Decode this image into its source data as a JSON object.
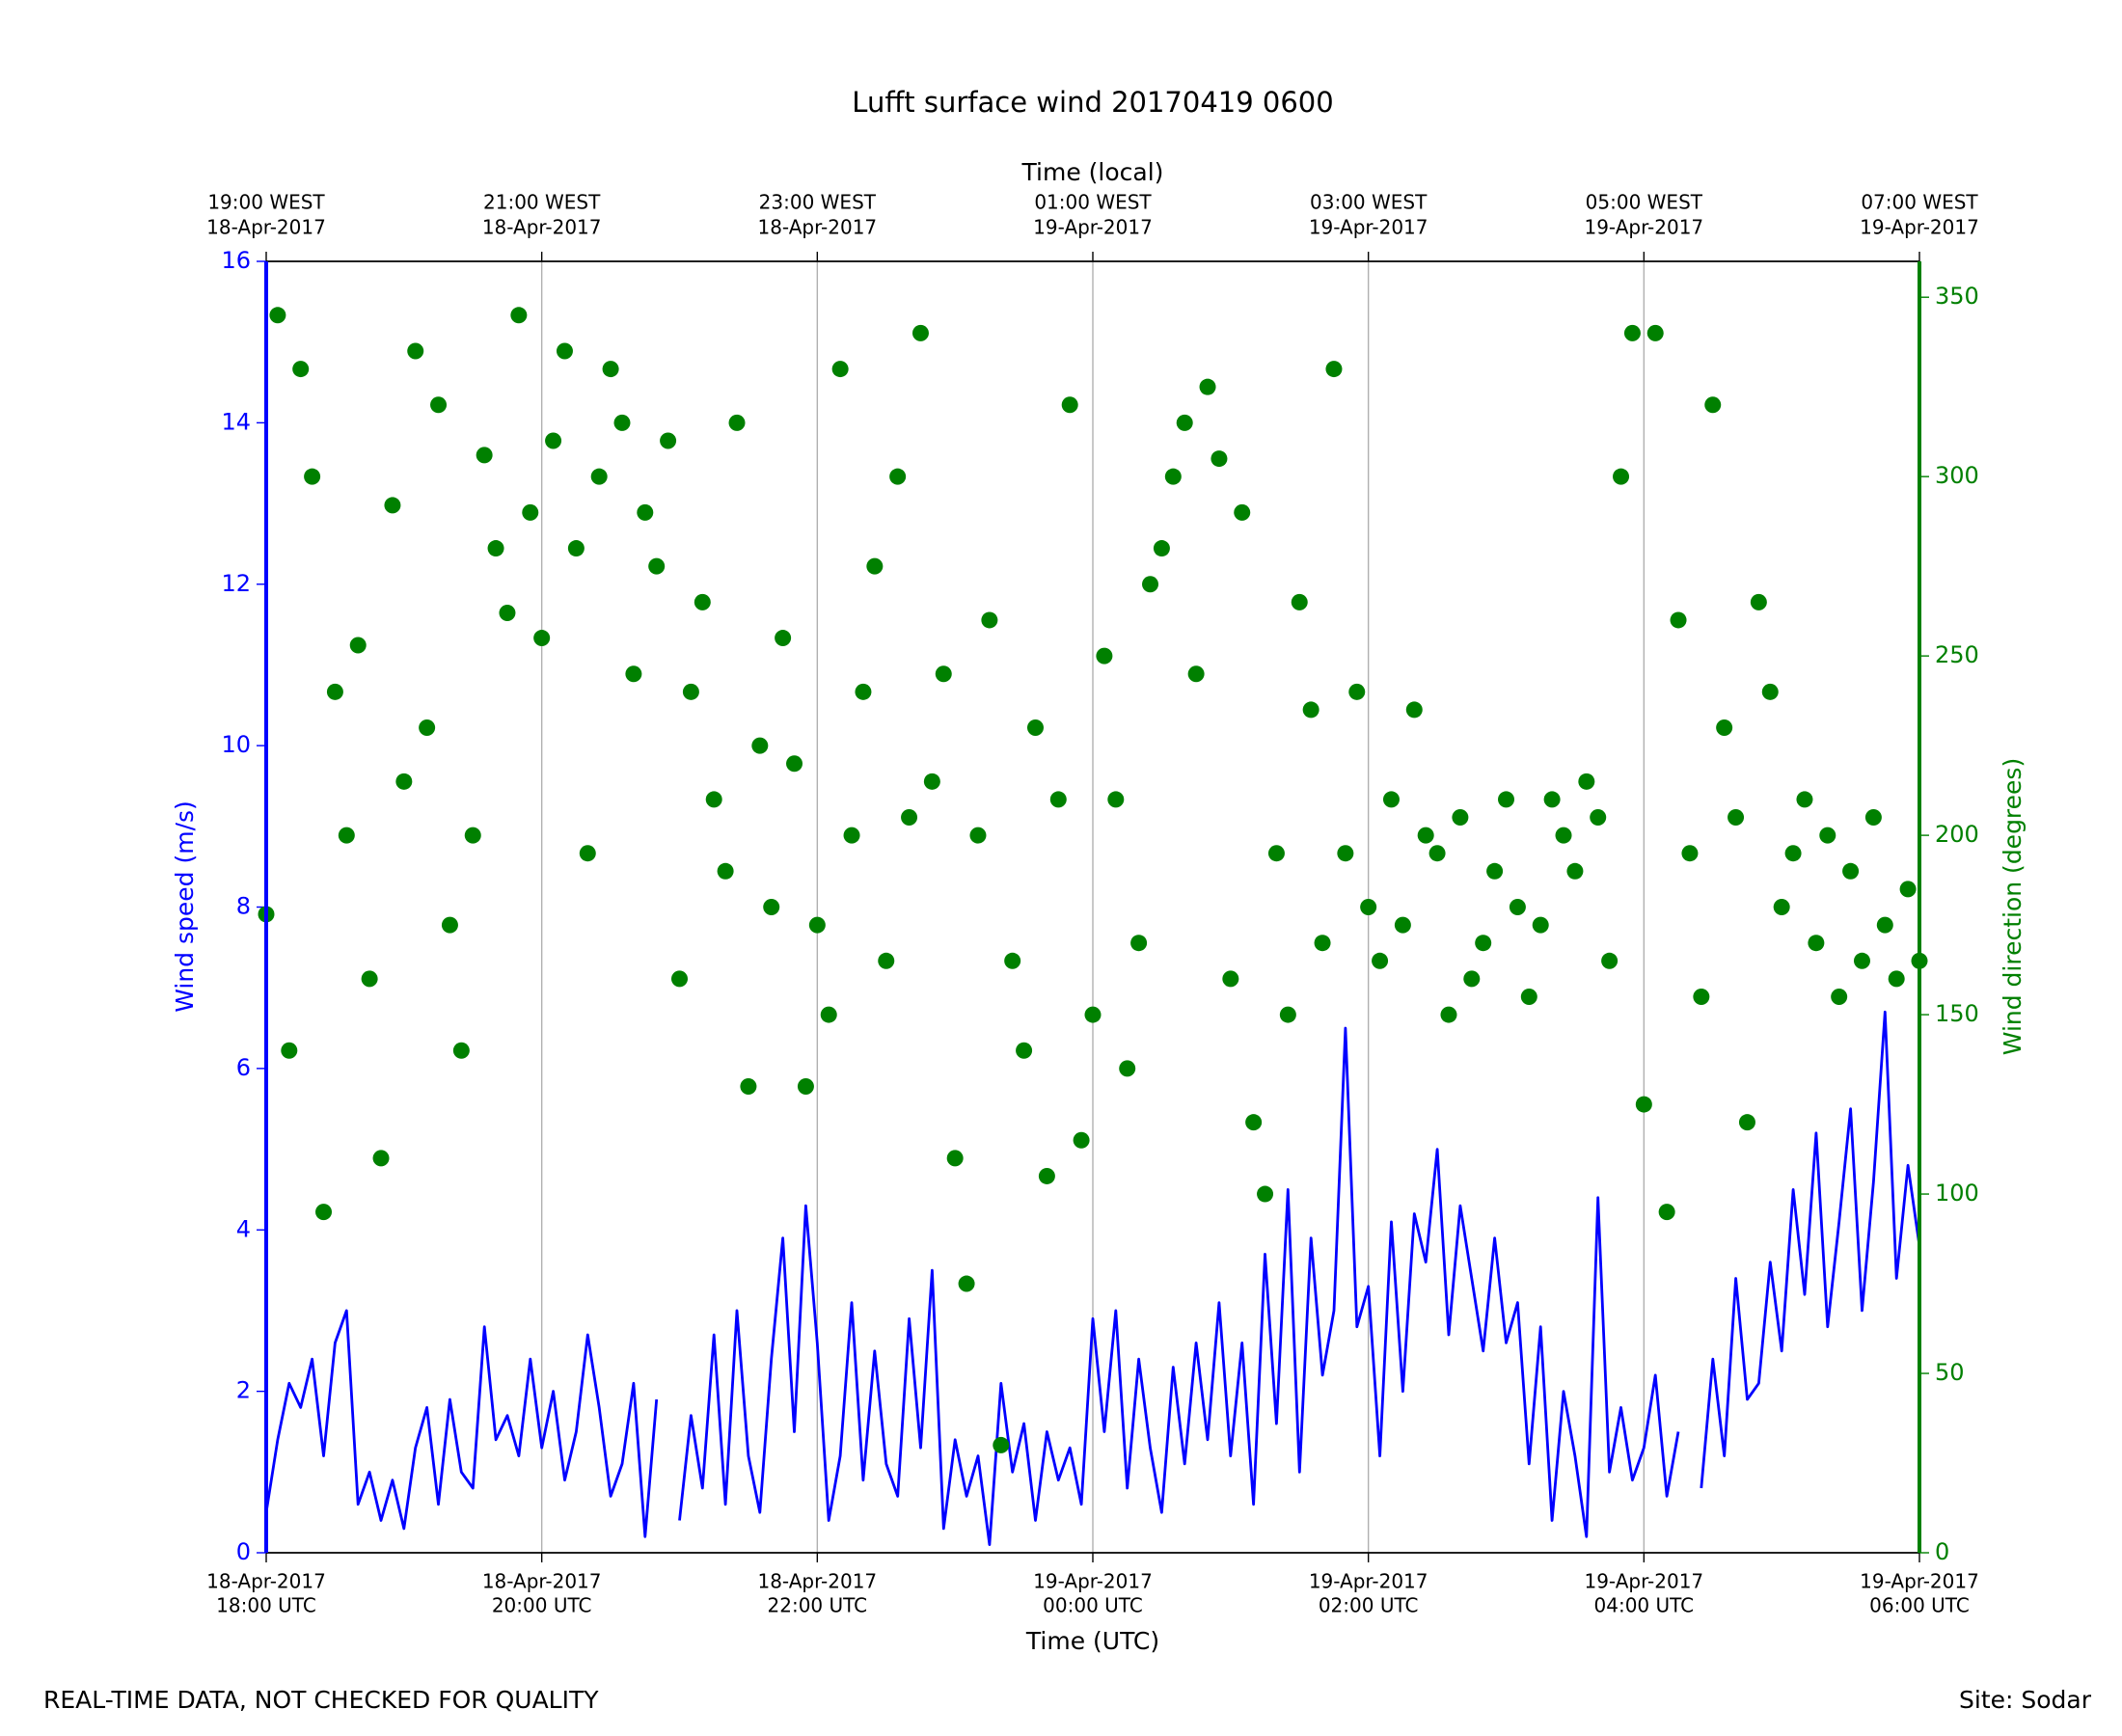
{
  "chart_data": {
    "type": "line",
    "title": "Lufft surface wind 20170419 0600",
    "xlabel": "Time (UTC)",
    "x2label": "Time (local)",
    "ylabel": "Wind speed (m/s)",
    "y2label": "Wind direction (degrees)",
    "footer_left": "REAL-TIME DATA, NOT CHECKED FOR QUALITY",
    "footer_right": "Site: Sodar",
    "grid": true,
    "xlim": [
      "2017-04-18 18:00",
      "2017-04-19 06:00"
    ],
    "xticks": [
      {
        "value": "2017-04-18 18:00",
        "label": [
          "18-Apr-2017",
          "18:00 UTC"
        ]
      },
      {
        "value": "2017-04-18 20:00",
        "label": [
          "18-Apr-2017",
          "20:00 UTC"
        ]
      },
      {
        "value": "2017-04-18 22:00",
        "label": [
          "18-Apr-2017",
          "22:00 UTC"
        ]
      },
      {
        "value": "2017-04-19 00:00",
        "label": [
          "19-Apr-2017",
          "00:00 UTC"
        ]
      },
      {
        "value": "2017-04-19 02:00",
        "label": [
          "19-Apr-2017",
          "02:00 UTC"
        ]
      },
      {
        "value": "2017-04-19 04:00",
        "label": [
          "19-Apr-2017",
          "04:00 UTC"
        ]
      },
      {
        "value": "2017-04-19 06:00",
        "label": [
          "19-Apr-2017",
          "06:00 UTC"
        ]
      }
    ],
    "x2ticks": [
      {
        "value": "2017-04-18 18:00",
        "label": [
          "19:00 WEST",
          "18-Apr-2017"
        ]
      },
      {
        "value": "2017-04-18 20:00",
        "label": [
          "21:00 WEST",
          "18-Apr-2017"
        ]
      },
      {
        "value": "2017-04-18 22:00",
        "label": [
          "23:00 WEST",
          "18-Apr-2017"
        ]
      },
      {
        "value": "2017-04-19 00:00",
        "label": [
          "01:00 WEST",
          "19-Apr-2017"
        ]
      },
      {
        "value": "2017-04-19 02:00",
        "label": [
          "03:00 WEST",
          "19-Apr-2017"
        ]
      },
      {
        "value": "2017-04-19 04:00",
        "label": [
          "05:00 WEST",
          "19-Apr-2017"
        ]
      },
      {
        "value": "2017-04-19 06:00",
        "label": [
          "07:00 WEST",
          "19-Apr-2017"
        ]
      }
    ],
    "ylim": [
      0,
      16
    ],
    "yticks": [
      0,
      2,
      4,
      6,
      8,
      10,
      12,
      14,
      16
    ],
    "y2lim": [
      0,
      360
    ],
    "y2ticks": [
      0,
      50,
      100,
      150,
      200,
      250,
      300,
      350
    ],
    "x": [
      "2017-04-18 18:00",
      "2017-04-18 18:05",
      "2017-04-18 18:10",
      "2017-04-18 18:15",
      "2017-04-18 18:20",
      "2017-04-18 18:25",
      "2017-04-18 18:30",
      "2017-04-18 18:35",
      "2017-04-18 18:40",
      "2017-04-18 18:45",
      "2017-04-18 18:50",
      "2017-04-18 18:55",
      "2017-04-18 19:00",
      "2017-04-18 19:05",
      "2017-04-18 19:10",
      "2017-04-18 19:15",
      "2017-04-18 19:20",
      "2017-04-18 19:25",
      "2017-04-18 19:30",
      "2017-04-18 19:35",
      "2017-04-18 19:40",
      "2017-04-18 19:45",
      "2017-04-18 19:50",
      "2017-04-18 19:55",
      "2017-04-18 20:00",
      "2017-04-18 20:05",
      "2017-04-18 20:10",
      "2017-04-18 20:15",
      "2017-04-18 20:20",
      "2017-04-18 20:25",
      "2017-04-18 20:30",
      "2017-04-18 20:35",
      "2017-04-18 20:40",
      "2017-04-18 20:45",
      "2017-04-18 20:50",
      "2017-04-18 20:55",
      "2017-04-18 21:00",
      "2017-04-18 21:05",
      "2017-04-18 21:10",
      "2017-04-18 21:15",
      "2017-04-18 21:20",
      "2017-04-18 21:25",
      "2017-04-18 21:30",
      "2017-04-18 21:35",
      "2017-04-18 21:40",
      "2017-04-18 21:45",
      "2017-04-18 21:50",
      "2017-04-18 21:55",
      "2017-04-18 22:00",
      "2017-04-18 22:05",
      "2017-04-18 22:10",
      "2017-04-18 22:15",
      "2017-04-18 22:20",
      "2017-04-18 22:25",
      "2017-04-18 22:30",
      "2017-04-18 22:35",
      "2017-04-18 22:40",
      "2017-04-18 22:45",
      "2017-04-18 22:50",
      "2017-04-18 22:55",
      "2017-04-18 23:00",
      "2017-04-18 23:05",
      "2017-04-18 23:10",
      "2017-04-18 23:15",
      "2017-04-18 23:20",
      "2017-04-18 23:25",
      "2017-04-18 23:30",
      "2017-04-18 23:35",
      "2017-04-18 23:40",
      "2017-04-18 23:45",
      "2017-04-18 23:50",
      "2017-04-18 23:55",
      "2017-04-19 00:00",
      "2017-04-19 00:05",
      "2017-04-19 00:10",
      "2017-04-19 00:15",
      "2017-04-19 00:20",
      "2017-04-19 00:25",
      "2017-04-19 00:30",
      "2017-04-19 00:35",
      "2017-04-19 00:40",
      "2017-04-19 00:45",
      "2017-04-19 00:50",
      "2017-04-19 00:55",
      "2017-04-19 01:00",
      "2017-04-19 01:05",
      "2017-04-19 01:10",
      "2017-04-19 01:15",
      "2017-04-19 01:20",
      "2017-04-19 01:25",
      "2017-04-19 01:30",
      "2017-04-19 01:35",
      "2017-04-19 01:40",
      "2017-04-19 01:45",
      "2017-04-19 01:50",
      "2017-04-19 01:55",
      "2017-04-19 02:00",
      "2017-04-19 02:05",
      "2017-04-19 02:10",
      "2017-04-19 02:15",
      "2017-04-19 02:20",
      "2017-04-19 02:25",
      "2017-04-19 02:30",
      "2017-04-19 02:35",
      "2017-04-19 02:40",
      "2017-04-19 02:45",
      "2017-04-19 02:50",
      "2017-04-19 02:55",
      "2017-04-19 03:00",
      "2017-04-19 03:05",
      "2017-04-19 03:10",
      "2017-04-19 03:15",
      "2017-04-19 03:20",
      "2017-04-19 03:25",
      "2017-04-19 03:30",
      "2017-04-19 03:35",
      "2017-04-19 03:40",
      "2017-04-19 03:45",
      "2017-04-19 03:50",
      "2017-04-19 03:55",
      "2017-04-19 04:00",
      "2017-04-19 04:05",
      "2017-04-19 04:10",
      "2017-04-19 04:15",
      "2017-04-19 04:20",
      "2017-04-19 04:25",
      "2017-04-19 04:30",
      "2017-04-19 04:35",
      "2017-04-19 04:40",
      "2017-04-19 04:45",
      "2017-04-19 04:50",
      "2017-04-19 04:55",
      "2017-04-19 05:00",
      "2017-04-19 05:05",
      "2017-04-19 05:10",
      "2017-04-19 05:15",
      "2017-04-19 05:20",
      "2017-04-19 05:25",
      "2017-04-19 05:30",
      "2017-04-19 05:35",
      "2017-04-19 05:40",
      "2017-04-19 05:45",
      "2017-04-19 05:50",
      "2017-04-19 05:55",
      "2017-04-19 06:00"
    ],
    "series": [
      {
        "type": "line",
        "axis": "y",
        "color": "#0000ff",
        "values": [
          0.5,
          1.4,
          2.1,
          1.8,
          2.4,
          1.2,
          2.6,
          3.0,
          0.6,
          1.0,
          0.4,
          0.9,
          0.3,
          1.3,
          1.8,
          0.6,
          1.9,
          1.0,
          0.8,
          2.8,
          1.4,
          1.7,
          1.2,
          2.4,
          1.3,
          2.0,
          0.9,
          1.5,
          2.7,
          1.8,
          0.7,
          1.1,
          2.1,
          0.2,
          1.9,
          null,
          0.4,
          1.7,
          0.8,
          2.7,
          0.6,
          3.0,
          1.2,
          0.5,
          2.4,
          3.9,
          1.5,
          4.3,
          2.6,
          0.4,
          1.2,
          3.1,
          0.9,
          2.5,
          1.1,
          0.7,
          2.9,
          1.3,
          3.5,
          0.3,
          1.4,
          0.7,
          1.2,
          0.1,
          2.1,
          1.0,
          1.6,
          0.4,
          1.5,
          0.9,
          1.3,
          0.6,
          2.9,
          1.5,
          3.0,
          0.8,
          2.4,
          1.3,
          0.5,
          2.3,
          1.1,
          2.6,
          1.4,
          3.1,
          1.2,
          2.6,
          0.6,
          3.7,
          1.6,
          4.5,
          1.0,
          3.9,
          2.2,
          3.0,
          6.5,
          2.8,
          3.3,
          1.2,
          4.1,
          2.0,
          4.2,
          3.6,
          5.0,
          2.7,
          4.3,
          3.4,
          2.5,
          3.9,
          2.6,
          3.1,
          1.1,
          2.8,
          0.4,
          2.0,
          1.2,
          0.2,
          4.4,
          1.0,
          1.8,
          0.9,
          1.3,
          2.2,
          0.7,
          1.5,
          null,
          0.8,
          2.4,
          1.2,
          3.4,
          1.9,
          2.1,
          3.6,
          2.5,
          4.5,
          3.2,
          5.2,
          2.8,
          4.1,
          5.5,
          3.0,
          4.6,
          6.7,
          3.4,
          4.8,
          3.8
        ]
      },
      {
        "type": "scatter",
        "axis": "y2",
        "color": "#008000",
        "values": [
          178,
          345,
          140,
          330,
          300,
          95,
          240,
          200,
          253,
          160,
          110,
          292,
          215,
          335,
          230,
          320,
          175,
          140,
          200,
          306,
          280,
          262,
          345,
          290,
          255,
          310,
          335,
          280,
          195,
          300,
          330,
          315,
          245,
          290,
          275,
          310,
          160,
          240,
          265,
          210,
          190,
          315,
          130,
          225,
          180,
          255,
          220,
          130,
          175,
          150,
          330,
          200,
          240,
          275,
          165,
          300,
          205,
          340,
          215,
          245,
          110,
          75,
          200,
          260,
          30,
          165,
          140,
          230,
          105,
          210,
          320,
          115,
          150,
          250,
          210,
          135,
          170,
          270,
          280,
          300,
          315,
          245,
          325,
          305,
          160,
          290,
          120,
          100,
          195,
          150,
          265,
          235,
          170,
          330,
          195,
          240,
          180,
          165,
          210,
          175,
          235,
          200,
          195,
          150,
          205,
          160,
          170,
          190,
          210,
          180,
          155,
          175,
          210,
          200,
          190,
          215,
          205,
          165,
          300,
          340,
          125,
          340,
          95,
          260,
          195,
          155,
          320,
          230,
          205,
          120,
          265,
          240,
          180,
          195,
          210,
          170,
          200,
          155,
          190,
          165,
          205,
          175,
          160,
          185,
          165
        ]
      }
    ]
  }
}
